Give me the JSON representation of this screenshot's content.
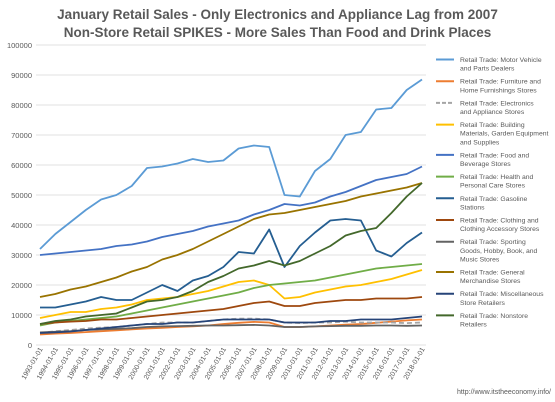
{
  "title_line1": "January Retail Sales - Only Electronics and Appliance Lag from 2007",
  "title_line2": "Non-Store Retail SPIKES - More Sales Than Food and Drink Places",
  "watermark": "http://www.itstheeconomy.info/",
  "chart_data": {
    "type": "line",
    "title": "January Retail Sales - Only Electronics and Appliance Lag from 2007 / Non-Store Retail SPIKES - More Sales Than Food and Drink Places",
    "ylim": [
      0,
      100000
    ],
    "yticks": [
      0,
      10000,
      20000,
      30000,
      40000,
      50000,
      60000,
      70000,
      80000,
      90000,
      100000
    ],
    "grid": true,
    "legend_position": "right",
    "x": [
      "1993-01-01",
      "1994-01-01",
      "1995-01-01",
      "1996-01-01",
      "1997-01-01",
      "1998-01-01",
      "1999-01-01",
      "2000-01-01",
      "2001-01-01",
      "2002-01-01",
      "2003-01-01",
      "2004-01-01",
      "2005-01-01",
      "2006-01-01",
      "2007-01-01",
      "2008-01-01",
      "2009-01-01",
      "2010-01-01",
      "2011-01-01",
      "2012-01-01",
      "2013-01-01",
      "2014-01-01",
      "2015-01-01",
      "2016-01-01",
      "2017-01-01",
      "2018-01-01"
    ],
    "series": [
      {
        "name": "Retail Trade: Motor Vehicle and Parts Dealers",
        "color": "#5B9BD5",
        "dash": "solid",
        "values": [
          32000,
          37000,
          41000,
          45000,
          48500,
          50000,
          53000,
          59000,
          59500,
          60500,
          62000,
          61000,
          61500,
          65500,
          66500,
          66000,
          50000,
          49500,
          58000,
          62000,
          70000,
          71000,
          78500,
          79000,
          85000,
          88500
        ]
      },
      {
        "name": "Retail Trade: Furniture and Home Furnishings Stores",
        "color": "#ED7D31",
        "dash": "solid",
        "values": [
          3500,
          3800,
          4000,
          4300,
          4600,
          4900,
          5200,
          5500,
          5700,
          6000,
          6200,
          6500,
          7000,
          7400,
          7700,
          7500,
          6000,
          6000,
          6200,
          6500,
          6800,
          7000,
          7400,
          7800,
          8200,
          8500
        ]
      },
      {
        "name": "Retail Trade: Electronics and Appliance Stores",
        "color": "#A5A5A5",
        "dash": "dash",
        "values": [
          4000,
          4600,
          5000,
          5500,
          5800,
          6000,
          6500,
          7000,
          7500,
          7500,
          7500,
          8000,
          8500,
          8800,
          8800,
          8500,
          7500,
          7300,
          7500,
          7500,
          7800,
          7500,
          7500,
          7500,
          7300,
          7500
        ]
      },
      {
        "name": "Retail Trade: Building Materials, Garden Equipment and Supplies",
        "color": "#FFC000",
        "dash": "solid",
        "values": [
          9000,
          10000,
          11000,
          11000,
          12000,
          12500,
          13500,
          15000,
          15500,
          16000,
          17000,
          18000,
          19500,
          21000,
          21500,
          20000,
          15500,
          16000,
          17500,
          18500,
          19500,
          20000,
          21000,
          22000,
          23500,
          25000
        ]
      },
      {
        "name": "Retail Trade: Food and Beverage Stores",
        "color": "#4472C4",
        "dash": "solid",
        "values": [
          30000,
          30500,
          31000,
          31500,
          32000,
          33000,
          33500,
          34500,
          36000,
          37000,
          38000,
          39500,
          40500,
          41500,
          43500,
          45000,
          47000,
          46500,
          47500,
          49500,
          51000,
          53000,
          55000,
          56000,
          57000,
          59500
        ]
      },
      {
        "name": "Retail Trade: Health and Personal Care Stores",
        "color": "#70AD47",
        "dash": "solid",
        "values": [
          6500,
          7500,
          8000,
          8500,
          9000,
          9500,
          10500,
          11500,
          12500,
          13500,
          14500,
          15500,
          16500,
          17500,
          19000,
          20000,
          20500,
          21000,
          21500,
          22500,
          23500,
          24500,
          25500,
          26000,
          26500,
          27000
        ]
      },
      {
        "name": "Retail Trade: Gasoline Stations",
        "color": "#255E91",
        "dash": "solid",
        "values": [
          12500,
          12500,
          13500,
          14500,
          16000,
          15000,
          15000,
          17500,
          20000,
          18000,
          21500,
          23000,
          26000,
          31000,
          30500,
          38500,
          26000,
          33000,
          37500,
          41500,
          42000,
          41500,
          31500,
          29500,
          34000,
          37500
        ]
      },
      {
        "name": "Retail Trade: Clothing and Clothing Accessory Stores",
        "color": "#9E480E",
        "dash": "solid",
        "values": [
          7000,
          7500,
          7800,
          8000,
          8500,
          8500,
          9000,
          9500,
          10000,
          10500,
          11000,
          11500,
          12000,
          13000,
          14000,
          14500,
          13000,
          13000,
          14000,
          14500,
          15000,
          15000,
          15500,
          15500,
          15500,
          16000
        ]
      },
      {
        "name": "Retail Trade: Sporting Goods, Hobby, Book, and Music Stores",
        "color": "#636363",
        "dash": "solid",
        "values": [
          4200,
          4400,
          4600,
          5000,
          5200,
          5400,
          5600,
          6000,
          6200,
          6300,
          6400,
          6500,
          6500,
          6600,
          6700,
          6500,
          6000,
          6000,
          6200,
          6300,
          6400,
          6400,
          6500,
          6500,
          6400,
          6500
        ]
      },
      {
        "name": "Retail Trade: General Merchandise Stores",
        "color": "#997300",
        "dash": "solid",
        "values": [
          16000,
          17000,
          18500,
          19500,
          21000,
          22500,
          24500,
          26000,
          28500,
          30000,
          32000,
          34500,
          37000,
          39500,
          42000,
          43500,
          44000,
          45000,
          46000,
          47000,
          48000,
          49500,
          50500,
          51500,
          52500,
          54000
        ]
      },
      {
        "name": "Retail Trade: Miscellaneous Store Retailers",
        "color": "#264478",
        "dash": "solid",
        "values": [
          4000,
          4200,
          4500,
          5000,
          5500,
          6000,
          6500,
          7000,
          7000,
          7500,
          7500,
          8000,
          8500,
          8500,
          8500,
          8500,
          7500,
          7500,
          7500,
          8000,
          8000,
          8500,
          8500,
          8500,
          9000,
          9500
        ]
      },
      {
        "name": "Retail Trade: Nonstore Retailers",
        "color": "#43682B",
        "dash": "solid",
        "values": [
          7000,
          8000,
          8500,
          9500,
          10000,
          10500,
          12500,
          14500,
          15000,
          16000,
          18000,
          21000,
          23000,
          25500,
          26500,
          28000,
          26500,
          28000,
          30500,
          33000,
          36500,
          38000,
          39000,
          44000,
          49500,
          54000
        ]
      }
    ]
  }
}
